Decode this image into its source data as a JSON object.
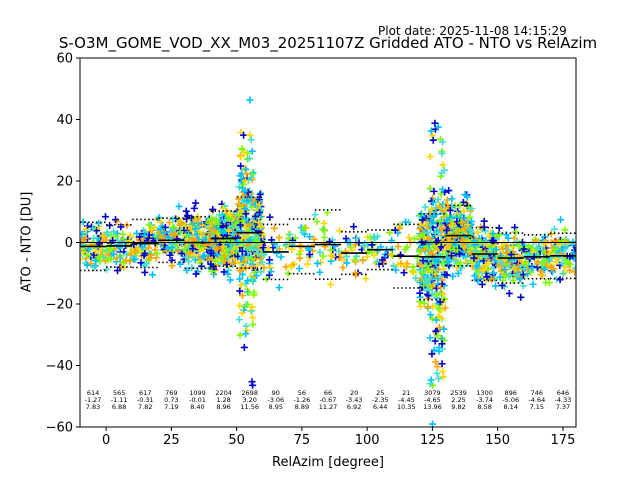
{
  "plot_date": "Plot date: 2025-11-08 14:15:29",
  "chart_data": {
    "type": "scatter",
    "title": "S-O3M_GOME_VOD_XX_M03_20251107Z Gridded ATO - NTO vs RelAzim",
    "xlabel": "RelAzim [degree]",
    "ylabel": "ATO - NTO [DU]",
    "xlim": [
      -10,
      180
    ],
    "ylim": [
      -60,
      60
    ],
    "x_ticks": [
      0,
      25,
      50,
      75,
      100,
      125,
      150,
      175
    ],
    "x_tick_labels": [
      "0",
      "25",
      "50",
      "75",
      "100",
      "125",
      "150",
      "175"
    ],
    "y_ticks": [
      -60,
      -40,
      -20,
      0,
      20,
      40,
      60
    ],
    "y_tick_labels": [
      "−60",
      "−40",
      "−20",
      "0",
      "20",
      "40",
      "60"
    ],
    "marker": "+",
    "point_colors": [
      "#0000cd",
      "#00bfff",
      "#40e0d0",
      "#7cfc00",
      "#ffd700",
      "#ffa500"
    ],
    "zero_line": 0,
    "bins": [
      {
        "x": -5,
        "count": "614",
        "mean": "-1.27",
        "std": "7.83",
        "mean_value": -1.27,
        "std_value": 7.83
      },
      {
        "x": 5,
        "count": "565",
        "mean": "-1.11",
        "std": "6.88",
        "mean_value": -1.11,
        "std_value": 6.88
      },
      {
        "x": 15,
        "count": "617",
        "mean": "-0.31",
        "std": "7.82",
        "mean_value": -0.31,
        "std_value": 7.82
      },
      {
        "x": 25,
        "count": "769",
        "mean": "0.73",
        "std": "7.19",
        "mean_value": 0.73,
        "std_value": 7.19
      },
      {
        "x": 35,
        "count": "1099",
        "mean": "-0.01",
        "std": "8.40",
        "mean_value": -0.01,
        "std_value": 8.4
      },
      {
        "x": 45,
        "count": "2204",
        "mean": "1.28",
        "std": "8.96",
        "mean_value": 1.28,
        "std_value": 8.96
      },
      {
        "x": 55,
        "count": "2698",
        "mean": "3.20",
        "std": "11.56",
        "mean_value": 3.2,
        "std_value": 11.56
      },
      {
        "x": 65,
        "count": "90",
        "mean": "-3.06",
        "std": "8.95",
        "mean_value": -3.06,
        "std_value": 8.95
      },
      {
        "x": 75,
        "count": "56",
        "mean": "-1.26",
        "std": "8.89",
        "mean_value": -1.26,
        "std_value": 8.89
      },
      {
        "x": 85,
        "count": "66",
        "mean": "-0.67",
        "std": "11.27",
        "mean_value": -0.67,
        "std_value": 11.27
      },
      {
        "x": 95,
        "count": "20",
        "mean": "-3.43",
        "std": "6.92",
        "mean_value": -3.43,
        "std_value": 6.92
      },
      {
        "x": 105,
        "count": "25",
        "mean": "-2.35",
        "std": "6.44",
        "mean_value": -2.35,
        "std_value": 6.44
      },
      {
        "x": 115,
        "count": "21",
        "mean": "-4.45",
        "std": "10.35",
        "mean_value": -4.45,
        "std_value": 10.35
      },
      {
        "x": 125,
        "count": "3079",
        "mean": "-4.65",
        "std": "13.96",
        "mean_value": -4.65,
        "std_value": 13.96
      },
      {
        "x": 135,
        "count": "2539",
        "mean": "2.25",
        "std": "9.82",
        "mean_value": 2.25,
        "std_value": 9.82
      },
      {
        "x": 145,
        "count": "1300",
        "mean": "-3.74",
        "std": "8.58",
        "mean_value": -3.74,
        "std_value": 8.58
      },
      {
        "x": 155,
        "count": "896",
        "mean": "-5.06",
        "std": "8.14",
        "mean_value": -5.06,
        "std_value": 8.14
      },
      {
        "x": 165,
        "count": "746",
        "mean": "-4.64",
        "std": "7.15",
        "mean_value": -4.64,
        "std_value": 7.15
      },
      {
        "x": 175,
        "count": "646",
        "mean": "-4.33",
        "std": "7.37",
        "mean_value": -4.33,
        "std_value": 7.37
      }
    ]
  }
}
